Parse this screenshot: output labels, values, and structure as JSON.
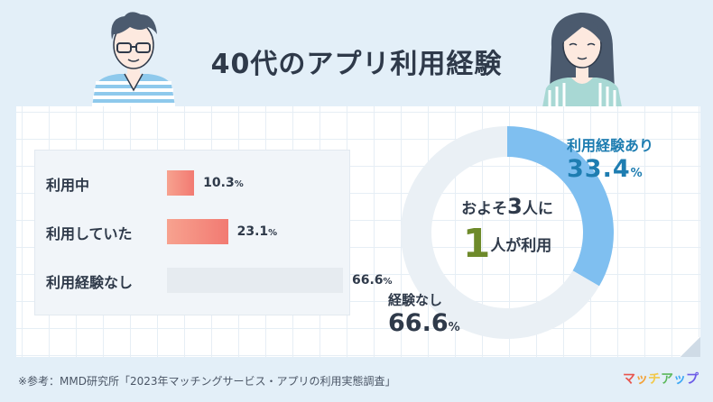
{
  "title": "40代のアプリ利用経験",
  "chart_data": [
    {
      "type": "bar",
      "orientation": "horizontal",
      "categories": [
        "利用中",
        "利用していた",
        "利用経験なし"
      ],
      "values": [
        10.3,
        23.1,
        66.6
      ],
      "value_labels": [
        "10.3",
        "23.1",
        "66.6"
      ],
      "unit": "%",
      "xlim": [
        0,
        100
      ],
      "colors": [
        "#f58a7d",
        "#f58a7d",
        "#e6ebf0"
      ]
    },
    {
      "type": "pie",
      "variant": "donut",
      "categories": [
        "利用経験あり",
        "経験なし"
      ],
      "values": [
        33.4,
        66.6
      ],
      "value_labels": [
        "33.4",
        "66.6"
      ],
      "unit": "%",
      "colors": [
        "#7fbff0",
        "#eaf0f5"
      ],
      "center_text": {
        "line1_pre": "およそ",
        "line1_num": "3",
        "line1_post": "人に",
        "line2_num": "1",
        "line2_post": "人が利用"
      }
    }
  ],
  "source": "※参考：MMD研究所「2023年マッチングサービス・アプリの利用実態調査」",
  "logo": {
    "text": "マッチアップ",
    "colors": [
      "#e8554e",
      "#f3a33b",
      "#f2c94c",
      "#5cb85c",
      "#3fa9f5",
      "#6c5ce7"
    ]
  }
}
